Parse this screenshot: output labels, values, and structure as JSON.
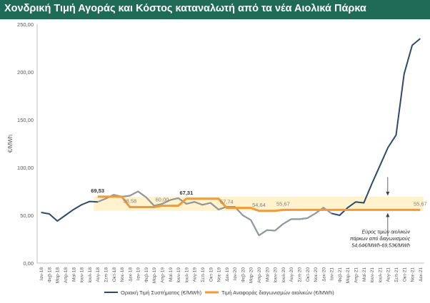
{
  "title": "Χονδρική Τιμή Αγοράς  και Κόστος καταναλωτή από τα νέα Αιολικά Πάρκα",
  "chart_data": {
    "type": "line",
    "title": "Χονδρική Τιμή Αγοράς  και Κόστος καταναλωτή από τα νέα Αιολικά Πάρκα",
    "ylabel": "€/MWh",
    "xlabel": "",
    "ylim": [
      0,
      250
    ],
    "yticks": [
      "0,00",
      "50,00",
      "100,00",
      "150,00",
      "200,00",
      "250,00"
    ],
    "grid": false,
    "legend": "bottom",
    "categories": [
      "Ιαν-18",
      "Φεβ-18",
      "Μαρ-18",
      "Απρ-18",
      "Μαϊ-18",
      "Ιουν-18",
      "Ιουλ-18",
      "Αυγ-18",
      "Σεπ-18",
      "Οκτ-18",
      "Νοε-18",
      "Δεκ-18",
      "Ιαν-19",
      "Φεβ-19",
      "Μαρ-19",
      "Απρ-19",
      "Μαϊ-19",
      "Ιουν-19",
      "Ιουλ-19",
      "Αυγ-19",
      "Σεπ-19",
      "Οκτ-19",
      "Νοε-19",
      "Δεκ-19",
      "Ιαν-20",
      "Φεβ-20",
      "Μαρ-20",
      "Απρ-20",
      "Μαϊ-20",
      "Ιουν-20",
      "Ιουλ-20",
      "Αυγ-20",
      "Σεπ-20",
      "Οκτ-20",
      "Νοε-20",
      "Δεκ-20",
      "Ιαν-21",
      "Φεβ-21",
      "Μαρ-21",
      "Απρ-21",
      "Μαϊ-21",
      "Ιουν-21",
      "Ιουλ-21",
      "Αυγ-21",
      "Σεπ-21",
      "Οκτ-21",
      "Νοε-21",
      "Δεκ-21"
    ],
    "xtick_labels": [
      "Ιαν-18",
      "Φεβ-18",
      "Μαρ-18",
      "Απρ-18",
      "Μαϊ-18",
      "Ιουν-18",
      "Ιουλ-18",
      "Αυγ-18",
      "Σεπ-18",
      "Οκτ-18",
      "Νοε-18",
      "Δεκ-18",
      "Ιαν-19",
      "Φεβ-19",
      "Μαρ-19",
      "Απρ-19",
      "Μαϊ-19",
      "Ιουν-19",
      "Ιουλ-19",
      "Αυγ-19",
      "Σεπ-19",
      "Οκτ-19",
      "Νοε-19",
      "Δεκ-19",
      "Ιαν-20",
      "Φεβ-20",
      "Μαρ-20",
      "Απρ-20",
      "Μαϊ-20",
      "Ιουν-20",
      "Ιουλ-20",
      "Αυγ-20",
      "Σεπ-20",
      "Οκτ-20",
      "Νοε-20",
      "Δεκ-20",
      "Ιαν-21",
      "Φεβ-21",
      "Μαρ-21",
      "Απρ-21",
      "Μαϊ-21",
      "Ιουν-21",
      "Ιουλ-21",
      "Αυγ-21",
      "Σεπ-21",
      "Οκτ-21",
      "Νοε-21",
      "Δεκ-21"
    ],
    "series": [
      {
        "name": "Οριακή Τιμή Συστήματος (€/MWh)",
        "color": "#2e4a6b",
        "values": [
          53,
          51.5,
          44,
          50,
          56,
          61,
          64.5,
          64,
          67.5,
          71.5,
          69.5,
          70.5,
          75,
          69,
          60,
          62,
          66,
          68,
          62,
          64,
          61,
          63,
          56,
          59,
          59,
          50,
          45,
          29,
          34.5,
          34,
          41,
          46,
          46,
          47,
          52,
          58,
          52,
          50,
          58,
          64,
          63,
          83,
          102,
          121,
          134,
          198,
          228,
          235
        ]
      },
      {
        "name": "Τιμή Αναφοράς διαγωνισμών αιολικών (€/MWh)",
        "color": "#f29a38",
        "values": [
          null,
          null,
          null,
          null,
          null,
          null,
          null,
          69.53,
          69.53,
          69.53,
          69.53,
          58.58,
          58.58,
          58.58,
          58.58,
          60,
          60,
          60,
          67.31,
          67.31,
          67.31,
          67.31,
          67.31,
          57.74,
          57.74,
          57.74,
          57.74,
          54.64,
          54.64,
          54.64,
          55.67,
          55.67,
          55.67,
          55.67,
          55.67,
          55.67,
          55.67,
          55.67,
          55.67,
          55.67,
          55.67,
          55.67,
          55.67,
          55.67,
          55.67,
          55.67,
          55.67,
          55.67
        ]
      }
    ],
    "band": {
      "low": 54.64,
      "high": 69.53,
      "color": "#fff2cc"
    },
    "data_labels": [
      {
        "index": 7,
        "value": 69.53,
        "text": "69,53",
        "bold": true
      },
      {
        "index": 11,
        "value": 58.58,
        "text": "58,58",
        "bold": false
      },
      {
        "index": 15,
        "value": 60,
        "text": "60,00",
        "bold": false
      },
      {
        "index": 18,
        "value": 67.31,
        "text": "67,31",
        "bold": true
      },
      {
        "index": 23,
        "value": 57.74,
        "text": "57,74",
        "bold": false
      },
      {
        "index": 27,
        "value": 54.64,
        "text": "54,64",
        "bold": false
      },
      {
        "index": 30,
        "value": 55.67,
        "text": "55,67",
        "bold": false
      },
      {
        "index": 47,
        "value": 55.67,
        "text": "55,67",
        "bold": false
      }
    ],
    "annotation": {
      "lines": [
        "Εύρος τιμών αιολικών",
        "πάρκων από διαγωνισμούς",
        "54,64€/MWh-69,53€/MWh"
      ]
    }
  }
}
